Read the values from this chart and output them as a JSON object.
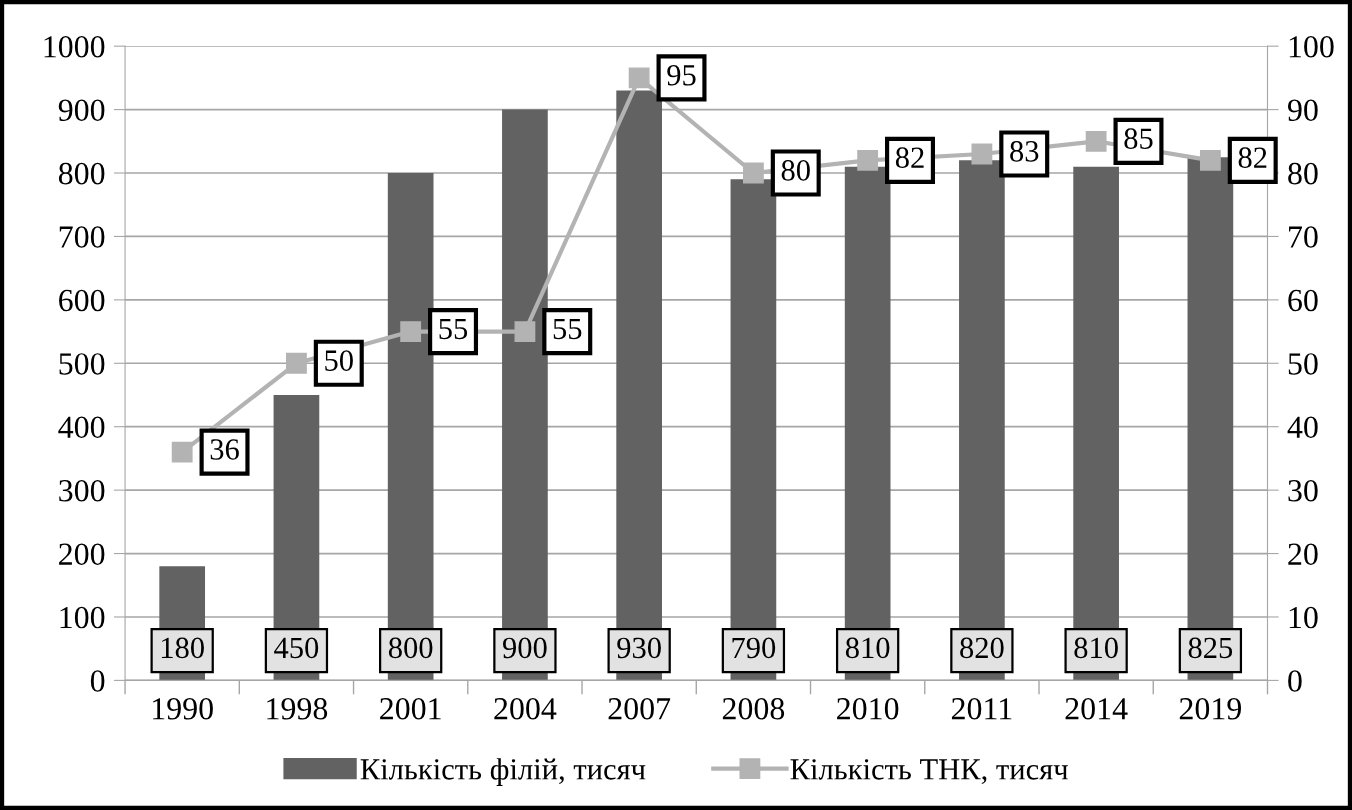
{
  "chart_data": {
    "type": "bar",
    "categories": [
      "1990",
      "1998",
      "2001",
      "2004",
      "2007",
      "2008",
      "2010",
      "2011",
      "2014",
      "2019"
    ],
    "series": [
      {
        "name": "Кількість філій, тисяч",
        "color": "#626262",
        "values": [
          180,
          450,
          800,
          900,
          930,
          790,
          810,
          820,
          810,
          825
        ]
      },
      {
        "name": "Кількість ТНК, тисяч",
        "type": "line",
        "axis": "y2",
        "color": "#b3b3b3",
        "values": [
          36,
          50,
          55,
          55,
          95,
          80,
          82,
          83,
          85,
          82
        ]
      }
    ],
    "ylim": [
      0,
      1000
    ],
    "yticks": [
      0,
      100,
      200,
      300,
      400,
      500,
      600,
      700,
      800,
      900,
      1000
    ],
    "y2lim": [
      0,
      100
    ],
    "y2ticks": [
      0,
      10,
      20,
      30,
      40,
      50,
      60,
      70,
      80,
      90,
      100
    ],
    "grid": "y",
    "legend": "bottom",
    "marker": "square",
    "line_style": "solid",
    "data_labels": true
  }
}
